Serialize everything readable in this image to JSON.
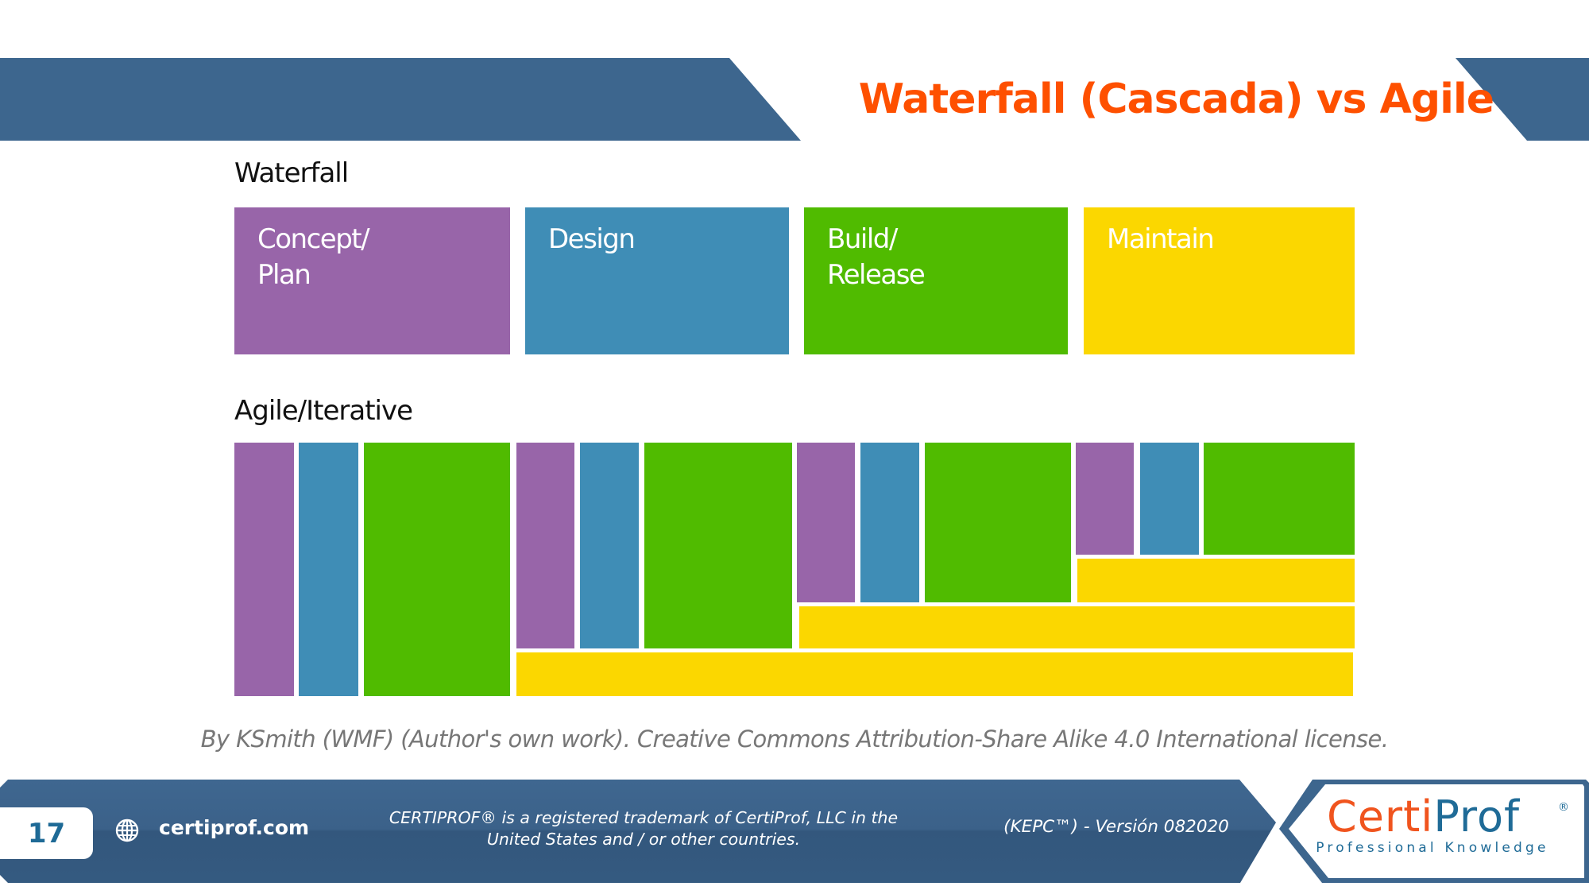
{
  "header": {
    "title": "Waterfall (Cascada) vs Agile"
  },
  "colors": {
    "banner": "#3d668e",
    "title": "#fe5000",
    "concept_plan": "#9865a9",
    "design": "#3f8db6",
    "build_release": "#50bb00",
    "maintain": "#fbd700"
  },
  "waterfall": {
    "label": "Waterfall",
    "phases": [
      {
        "label": "Concept/\nPlan",
        "color": "#9865a9"
      },
      {
        "label": "Design",
        "color": "#3f8db6"
      },
      {
        "label": "Build/\nRelease",
        "color": "#50bb00"
      },
      {
        "label": "Maintain",
        "color": "#fbd700"
      }
    ]
  },
  "agile": {
    "label": "Agile/Iterative",
    "iterations": 4,
    "phase_sequence": [
      "concept-plan",
      "design",
      "build-release",
      "maintain"
    ]
  },
  "caption": "By KSmith (WMF) (Author's own work). Creative Commons Attribution-Share Alike 4.0 International license.",
  "footer": {
    "page_number": "17",
    "website_icon": "globe-icon",
    "website": "certiprof.com",
    "trademark": "CERTIPROF® is a registered trademark of CertiProf, LLC in the\nUnited States and / or other countries.",
    "version": "(KEPC™) - Versión 082020",
    "logo": {
      "name_part1": "Certi",
      "name_part2": "Prof",
      "registered": "®",
      "tagline": "Professional Knowledge"
    }
  }
}
